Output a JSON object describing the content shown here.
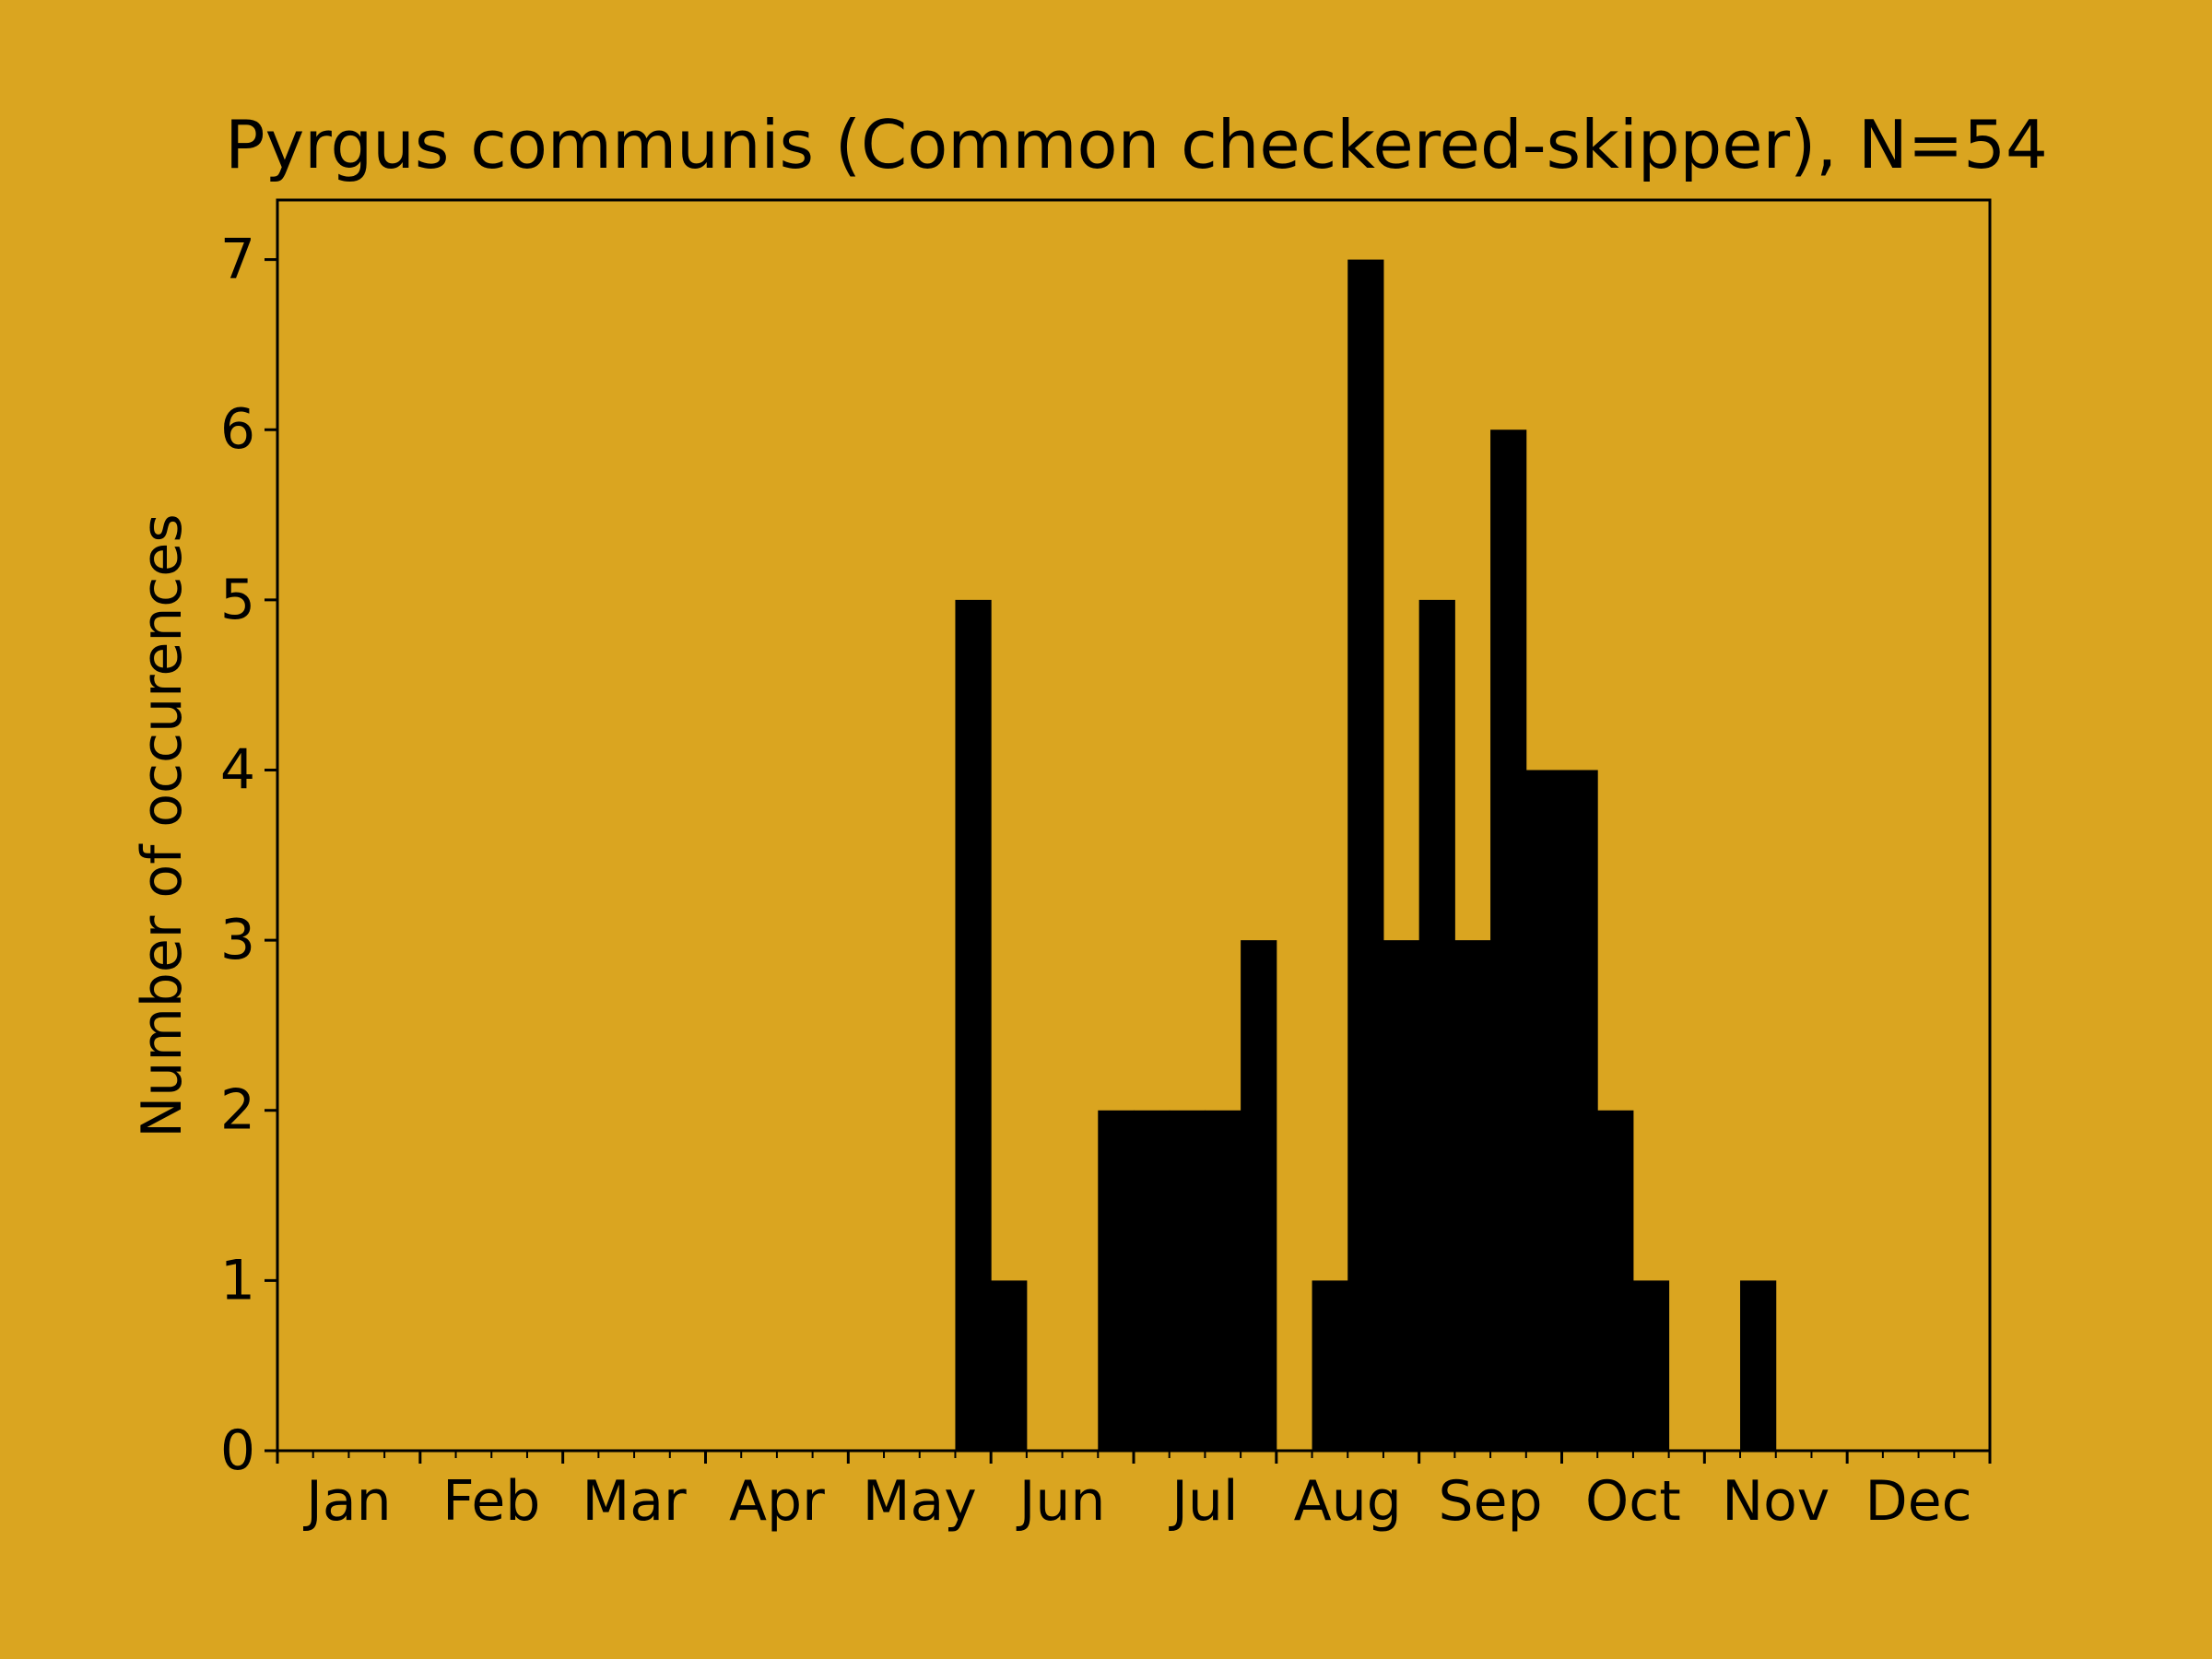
{
  "colors": {
    "background": "#DAA520",
    "bars": "#000000",
    "axes": "#000000"
  },
  "chart_data": {
    "type": "bar",
    "title": "Pyrgus communis (Common checkered-skipper), N=54",
    "xlabel": "",
    "ylabel": "Number of occurences",
    "ylim": [
      0,
      7.35
    ],
    "xlim": [
      0,
      48
    ],
    "yticks": [
      0,
      1,
      2,
      3,
      4,
      5,
      6,
      7
    ],
    "month_labels": [
      "Jan",
      "Feb",
      "Mar",
      "Apr",
      "May",
      "Jun",
      "Jul",
      "Aug",
      "Sep",
      "Oct",
      "Nov",
      "Dec"
    ],
    "grid": false,
    "bin_unit": "quarter-month (48 bins per year)",
    "values": [
      0,
      0,
      0,
      0,
      0,
      0,
      0,
      0,
      0,
      0,
      0,
      0,
      0,
      0,
      0,
      0,
      0,
      0,
      0,
      5,
      1,
      0,
      0,
      2,
      2,
      2,
      2,
      3,
      0,
      1,
      7,
      3,
      5,
      3,
      6,
      4,
      4,
      2,
      1,
      0,
      0,
      1,
      0,
      0,
      0,
      0,
      0,
      0
    ]
  }
}
